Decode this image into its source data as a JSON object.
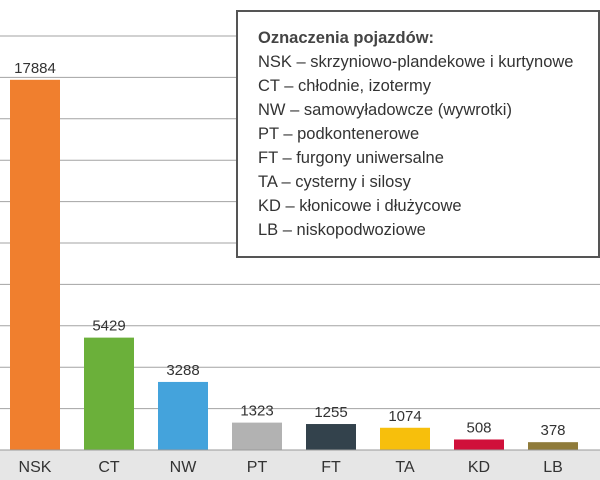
{
  "chart_data": {
    "type": "bar",
    "categories": [
      "NSK",
      "CT",
      "NW",
      "PT",
      "FT",
      "TA",
      "KD",
      "LB"
    ],
    "values": [
      17884,
      5429,
      3288,
      1323,
      1255,
      1074,
      508,
      378
    ],
    "value_labels": [
      "17884",
      "5429",
      "3288",
      "1323",
      "1255",
      "1074",
      "508",
      "378"
    ],
    "colors": [
      "#f07f2e",
      "#6bb03a",
      "#44a3dc",
      "#b2b2b2",
      "#33424c",
      "#f7bf0c",
      "#d0103a",
      "#8f7b3a"
    ],
    "ylim": [
      0,
      20000
    ],
    "grid": true,
    "title": "",
    "xlabel": "",
    "ylabel": ""
  },
  "legend": {
    "title": "Oznaczenia pojazdów:",
    "lines": [
      "NSK – skrzyniowo-plandekowe i kurtynowe",
      "CT – chłodnie, izotermy",
      "NW – samowyładowcze (wywrotki)",
      "PT – podkontenerowe",
      "FT – furgony uniwersalne",
      "TA – cysterny i silosy",
      "KD – kłonicowe i dłużycowe",
      "LB – niskopodwoziowe"
    ]
  }
}
